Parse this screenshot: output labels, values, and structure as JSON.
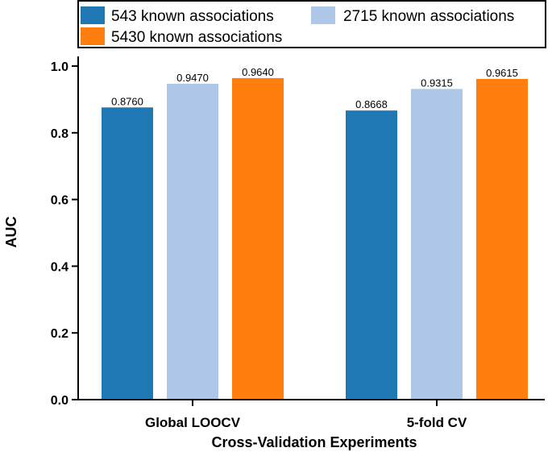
{
  "chart_data": {
    "type": "bar",
    "title": "",
    "xlabel": "Cross-Validation Experiments",
    "ylabel": "AUC",
    "ylim": [
      0,
      1.0
    ],
    "yticks": [
      "0.0",
      "0.2",
      "0.4",
      "0.6",
      "0.8",
      "1.0"
    ],
    "categories": [
      "Global LOOCV",
      "5-fold CV"
    ],
    "series": [
      {
        "name": "543 known associations",
        "color": "#1f77b4",
        "values": [
          0.876,
          0.8668
        ],
        "labels": [
          "0.8760",
          "0.8668"
        ]
      },
      {
        "name": "2715 known associations",
        "color": "#aec7e8",
        "values": [
          0.947,
          0.9315
        ],
        "labels": [
          "0.9470",
          "0.9315"
        ]
      },
      {
        "name": "5430 known associations",
        "color": "#ff7f0e",
        "values": [
          0.964,
          0.9615
        ],
        "labels": [
          "0.9640",
          "0.9615"
        ]
      }
    ],
    "legend_position": "top"
  }
}
